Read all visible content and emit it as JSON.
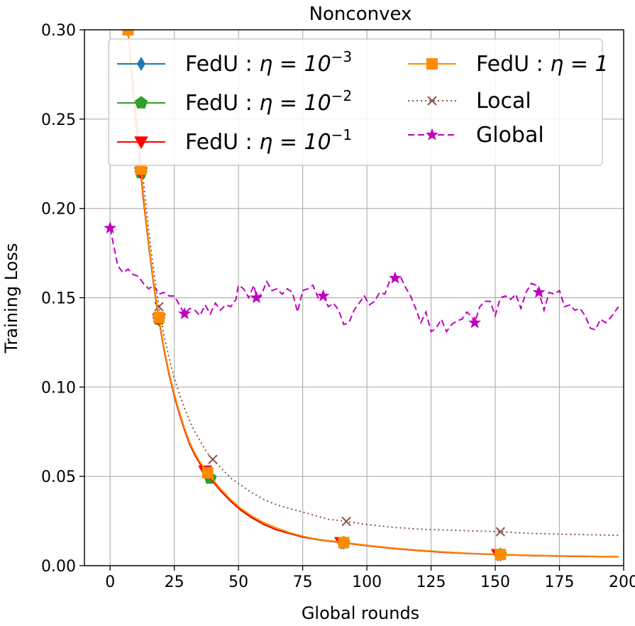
{
  "chart_data": {
    "type": "line",
    "title": "Nonconvex",
    "xlabel": "Global rounds",
    "ylabel": "Training Loss",
    "xlim": [
      -10,
      200
    ],
    "ylim": [
      0,
      0.3
    ],
    "xticks": [
      0,
      25,
      50,
      75,
      100,
      125,
      150,
      175,
      200
    ],
    "xtick_labels": [
      "0",
      "25",
      "50",
      "75",
      "100",
      "125",
      "150",
      "175",
      "200"
    ],
    "yticks": [
      0.0,
      0.05,
      0.1,
      0.15,
      0.2,
      0.25,
      0.3
    ],
    "ytick_labels": [
      "0.00",
      "0.05",
      "0.10",
      "0.15",
      "0.20",
      "0.25",
      "0.30"
    ],
    "grid": true,
    "legend_position": "top",
    "series": [
      {
        "name": "FedU: η = 10⁻³",
        "legend_parts": [
          "FedU",
          "η = 10",
          "−3"
        ],
        "color": "#1f77b4",
        "linestyle": "solid",
        "marker": "diamond",
        "x": [
          7,
          9,
          11,
          13,
          15,
          17,
          19,
          21,
          23,
          25,
          27,
          29,
          31,
          33,
          35,
          37,
          39,
          43,
          47,
          51,
          55,
          60,
          65,
          70,
          75,
          80,
          85,
          91,
          100,
          110,
          120,
          130,
          140,
          152,
          165,
          180,
          198
        ],
        "y": [
          0.3,
          0.265,
          0.235,
          0.205,
          0.18,
          0.157,
          0.138,
          0.121,
          0.107,
          0.095,
          0.085,
          0.076,
          0.068,
          0.062,
          0.057,
          0.053,
          0.049,
          0.042,
          0.036,
          0.031,
          0.027,
          0.023,
          0.02,
          0.018,
          0.016,
          0.0148,
          0.0138,
          0.0128,
          0.0112,
          0.0097,
          0.0085,
          0.0075,
          0.0068,
          0.0062,
          0.0057,
          0.0053,
          0.005
        ],
        "marker_x": [
          7,
          12,
          19,
          38,
          91,
          152
        ]
      },
      {
        "name": "FedU: η = 10⁻²",
        "legend_parts": [
          "FedU",
          "η = 10",
          "−2"
        ],
        "color": "#2ca02c",
        "linestyle": "solid",
        "marker": "pentagon",
        "x": [
          7,
          9,
          11,
          13,
          15,
          17,
          19,
          21,
          23,
          25,
          27,
          29,
          31,
          33,
          35,
          37,
          39,
          43,
          47,
          51,
          55,
          60,
          65,
          70,
          75,
          80,
          85,
          91,
          100,
          110,
          120,
          130,
          140,
          152,
          165,
          180,
          198
        ],
        "y": [
          0.3,
          0.265,
          0.235,
          0.205,
          0.18,
          0.157,
          0.138,
          0.121,
          0.107,
          0.095,
          0.085,
          0.076,
          0.068,
          0.062,
          0.057,
          0.053,
          0.049,
          0.042,
          0.036,
          0.031,
          0.027,
          0.023,
          0.02,
          0.018,
          0.016,
          0.0148,
          0.0138,
          0.0128,
          0.0112,
          0.0097,
          0.0085,
          0.0075,
          0.0068,
          0.0062,
          0.0057,
          0.0053,
          0.005
        ],
        "marker_x": [
          7,
          12,
          19,
          39,
          91,
          152
        ]
      },
      {
        "name": "FedU: η = 10⁻¹",
        "legend_parts": [
          "FedU",
          "η = 10",
          "−1"
        ],
        "color": "#ff0000",
        "linestyle": "solid",
        "marker": "triangle-down",
        "x": [
          7,
          9,
          11,
          13,
          15,
          17,
          19,
          21,
          23,
          25,
          27,
          29,
          31,
          33,
          35,
          37,
          39,
          43,
          47,
          51,
          55,
          60,
          65,
          70,
          75,
          80,
          85,
          91,
          100,
          110,
          120,
          130,
          140,
          152,
          165,
          180,
          198
        ],
        "y": [
          0.3,
          0.265,
          0.235,
          0.205,
          0.18,
          0.157,
          0.138,
          0.121,
          0.107,
          0.095,
          0.085,
          0.076,
          0.068,
          0.062,
          0.057,
          0.053,
          0.049,
          0.042,
          0.036,
          0.031,
          0.027,
          0.023,
          0.02,
          0.018,
          0.016,
          0.0148,
          0.0138,
          0.0128,
          0.0112,
          0.0097,
          0.0085,
          0.0075,
          0.0068,
          0.0062,
          0.0057,
          0.0053,
          0.005
        ],
        "marker_x": [
          7,
          12,
          19,
          37,
          90,
          151
        ]
      },
      {
        "name": "FedU: η = 1",
        "legend_parts": [
          "FedU",
          "η = 1",
          ""
        ],
        "color": "#ff8c00",
        "linestyle": "solid",
        "marker": "square",
        "x": [
          7,
          9,
          11,
          13,
          15,
          17,
          19,
          21,
          23,
          25,
          27,
          29,
          31,
          33,
          35,
          37,
          39,
          43,
          47,
          51,
          55,
          60,
          65,
          70,
          75,
          80,
          85,
          91,
          100,
          110,
          120,
          130,
          140,
          152,
          165,
          180,
          198
        ],
        "y": [
          0.3,
          0.267,
          0.237,
          0.207,
          0.181,
          0.158,
          0.139,
          0.122,
          0.108,
          0.096,
          0.086,
          0.077,
          0.069,
          0.063,
          0.058,
          0.054,
          0.05,
          0.043,
          0.037,
          0.032,
          0.028,
          0.024,
          0.021,
          0.0185,
          0.0165,
          0.015,
          0.014,
          0.013,
          0.0114,
          0.0099,
          0.0087,
          0.0077,
          0.0069,
          0.0063,
          0.0058,
          0.0054,
          0.0051
        ],
        "marker_x": [
          7,
          12,
          19,
          38,
          91,
          152
        ]
      },
      {
        "name": "Local",
        "legend_parts": [
          "Local"
        ],
        "color": "#8c564b",
        "linestyle": "dotted",
        "marker": "x",
        "x": [
          7,
          9,
          11,
          13,
          15,
          17,
          19,
          21,
          23,
          25,
          27,
          29,
          31,
          33,
          35,
          37,
          39,
          43,
          47,
          51,
          55,
          60,
          65,
          70,
          75,
          80,
          85,
          91,
          100,
          110,
          120,
          130,
          140,
          152,
          165,
          180,
          198
        ],
        "y": [
          0.3,
          0.27,
          0.243,
          0.215,
          0.188,
          0.165,
          0.145,
          0.129,
          0.116,
          0.105,
          0.096,
          0.088,
          0.081,
          0.075,
          0.07,
          0.065,
          0.061,
          0.055,
          0.049,
          0.045,
          0.041,
          0.037,
          0.034,
          0.032,
          0.03,
          0.028,
          0.026,
          0.025,
          0.023,
          0.0215,
          0.0205,
          0.02,
          0.0195,
          0.019,
          0.018,
          0.0175,
          0.017
        ],
        "marker_x": [
          19,
          40,
          92,
          152
        ]
      },
      {
        "name": "Global",
        "legend_parts": [
          "Global"
        ],
        "color": "#bf00bf",
        "linestyle": "dashed",
        "marker": "star",
        "x": [
          0,
          2,
          3,
          5,
          7,
          9,
          11,
          13,
          15,
          17,
          19,
          21,
          23,
          25,
          27,
          29,
          31,
          33,
          35,
          37,
          39,
          41,
          43,
          45,
          47,
          49,
          50,
          52,
          54,
          56,
          57,
          59,
          61,
          63,
          65,
          67,
          69,
          71,
          73,
          75,
          77,
          79,
          81,
          83,
          85,
          87,
          89,
          91,
          93,
          95,
          97,
          99,
          101,
          103,
          105,
          107,
          109,
          111,
          113,
          115,
          117,
          119,
          121,
          123,
          125,
          127,
          129,
          131,
          133,
          135,
          137,
          139,
          141,
          142,
          144,
          146,
          148,
          150,
          152,
          154,
          156,
          158,
          160,
          162,
          164,
          166,
          167,
          169,
          171,
          173,
          175,
          177,
          179,
          181,
          183,
          185,
          187,
          189,
          191,
          193,
          195,
          198
        ],
        "y": [
          0.189,
          0.175,
          0.168,
          0.164,
          0.166,
          0.163,
          0.162,
          0.158,
          0.155,
          0.157,
          0.152,
          0.153,
          0.151,
          0.151,
          0.146,
          0.141,
          0.144,
          0.143,
          0.14,
          0.146,
          0.141,
          0.147,
          0.143,
          0.146,
          0.145,
          0.149,
          0.157,
          0.155,
          0.15,
          0.157,
          0.15,
          0.152,
          0.159,
          0.154,
          0.155,
          0.152,
          0.155,
          0.153,
          0.142,
          0.154,
          0.155,
          0.157,
          0.15,
          0.151,
          0.145,
          0.147,
          0.143,
          0.135,
          0.136,
          0.143,
          0.147,
          0.151,
          0.146,
          0.148,
          0.153,
          0.152,
          0.16,
          0.161,
          0.162,
          0.156,
          0.151,
          0.144,
          0.136,
          0.142,
          0.131,
          0.133,
          0.138,
          0.131,
          0.135,
          0.137,
          0.138,
          0.142,
          0.139,
          0.136,
          0.145,
          0.148,
          0.148,
          0.14,
          0.15,
          0.151,
          0.149,
          0.152,
          0.144,
          0.153,
          0.158,
          0.157,
          0.153,
          0.143,
          0.153,
          0.152,
          0.154,
          0.145,
          0.146,
          0.143,
          0.144,
          0.14,
          0.133,
          0.132,
          0.138,
          0.136,
          0.139,
          0.145
        ],
        "marker_x": [
          0,
          29,
          57,
          83,
          111,
          142,
          167
        ]
      }
    ]
  }
}
